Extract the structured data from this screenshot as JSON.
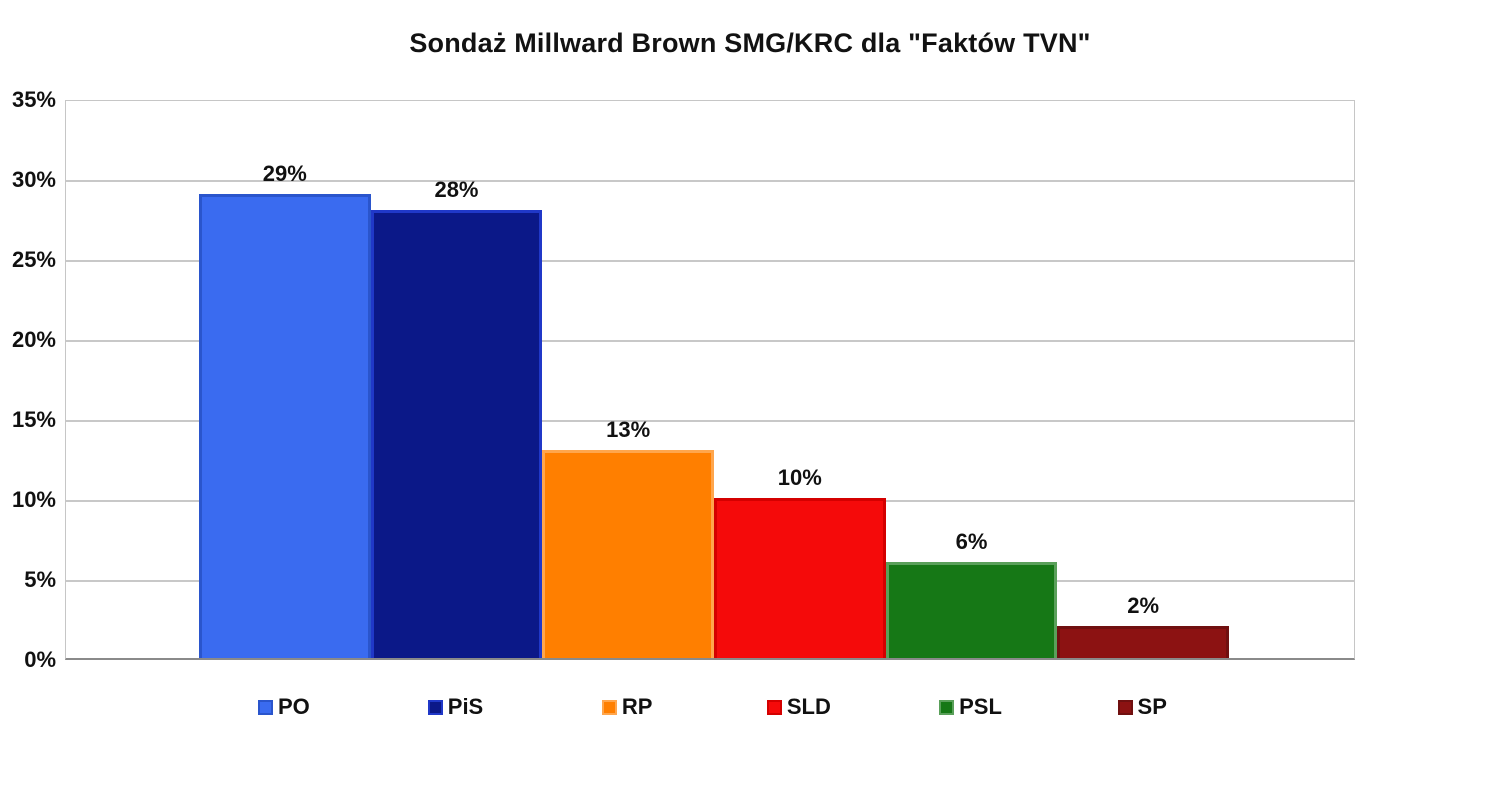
{
  "chart_data": {
    "type": "bar",
    "title": "Sondaż Millward Brown SMG/KRC dla \"Faktów TVN\"",
    "categories": [
      "PO",
      "PiS",
      "RP",
      "SLD",
      "PSL",
      "SP"
    ],
    "values": [
      29,
      28,
      13,
      10,
      6,
      2
    ],
    "value_labels": [
      "29%",
      "28%",
      "13%",
      "10%",
      "6%",
      "2%"
    ],
    "colors": [
      "#3a6bf0",
      "#0b1888",
      "#ff7f00",
      "#f50a0a",
      "#167816",
      "#8c1212"
    ],
    "border_colors": [
      "#2a55cc",
      "#2038c8",
      "#ffa64d",
      "#d40000",
      "#5aa05a",
      "#701010"
    ],
    "xlabel": "",
    "ylabel": "",
    "ylim": [
      0,
      35
    ],
    "ytick_step": 5,
    "ytick_labels": [
      "0%",
      "5%",
      "10%",
      "15%",
      "20%",
      "25%",
      "30%",
      "35%"
    ],
    "grid": true,
    "grid_color": "#c8c8c8",
    "axis_color": "#8a8a8a",
    "background": "#ffffff",
    "legend_position": "bottom"
  }
}
